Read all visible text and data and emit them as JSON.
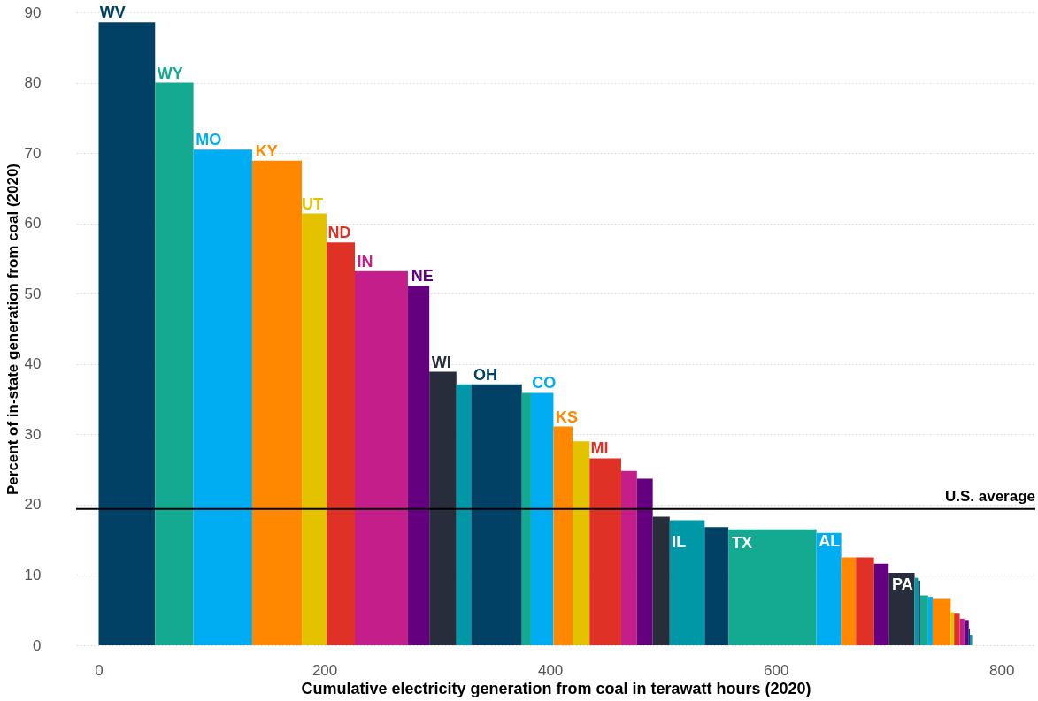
{
  "chart_data": {
    "type": "histogram",
    "xlabel": "Cumulative electricity generation from coal in terawatt hours (2020)",
    "ylabel": "Percent of in-state generation from coal (2020)",
    "bins": [
      0,
      50,
      84,
      136,
      180,
      202,
      227,
      274,
      293,
      317,
      330,
      375,
      383,
      403,
      420,
      435,
      463,
      477,
      491,
      506,
      537,
      558,
      636,
      658,
      671,
      687,
      700,
      723,
      726,
      728,
      735,
      739,
      755,
      758,
      763,
      767,
      771,
      772,
      774
    ],
    "values": [
      88.6,
      80,
      70.5,
      68.9,
      61.4,
      57.3,
      53.2,
      51.1,
      38.9,
      37.1,
      37.1,
      35.9,
      35.9,
      31.1,
      29.0,
      26.6,
      24.8,
      23.7,
      18.3,
      17.8,
      16.8,
      16.5,
      16.0,
      12.5,
      12.5,
      11.6,
      10.3,
      9.6,
      9.2,
      7.1,
      6.9,
      6.6,
      4.7,
      4.5,
      3.8,
      3.6,
      2.4,
      1.5
    ],
    "colors": [
      "#004165",
      "#14a991",
      "#00adf2",
      "#ff8800",
      "#e4c200",
      "#e03127",
      "#c41e8a",
      "#64007f",
      "#272d3a",
      "#0097a7",
      "#004165",
      "#14a991",
      "#00adf2",
      "#ff8800",
      "#e4c200",
      "#e03127",
      "#c41e8a",
      "#64007f",
      "#272d3a",
      "#0097a7",
      "#004165",
      "#14a991",
      "#00adf2",
      "#ff8800",
      "#e03127",
      "#64007f",
      "#272d3a",
      "#0097a7",
      "#004165",
      "#14a991",
      "#00adf2",
      "#ff8800",
      "#e4c200",
      "#e03127",
      "#c41e8a",
      "#64007f",
      "#004165",
      "#0097a7"
    ],
    "annotations": [
      {
        "text": "WV",
        "x": 1,
        "y": 88.6
      },
      {
        "text": "WY",
        "x": 52,
        "y": 80
      },
      {
        "text": "MO",
        "x": 86,
        "y": 70.5
      },
      {
        "text": "KY",
        "x": 139,
        "y": 68.9
      },
      {
        "text": "UT",
        "x": 180,
        "y": 61.4
      },
      {
        "text": "ND",
        "x": 203,
        "y": 57.3
      },
      {
        "text": "IN",
        "x": 229,
        "y": 53.2
      },
      {
        "text": "NE",
        "x": 277,
        "y": 51.1
      },
      {
        "text": "WI",
        "x": 295,
        "y": 38.9
      },
      {
        "text": "OH",
        "x": 332,
        "y": 37.1
      },
      {
        "text": "CO",
        "x": 384,
        "y": 35.9
      },
      {
        "text": "KS",
        "x": 405,
        "y": 31.1
      },
      {
        "text": "MI",
        "x": 436,
        "y": 26.6
      },
      {
        "text": "IL",
        "x": 508,
        "y": 14.6
      },
      {
        "text": "TX",
        "x": 561,
        "y": 14.5
      },
      {
        "text": "AL",
        "x": 638,
        "y": 14.7
      },
      {
        "text": "PA",
        "x": 703,
        "y": 8.6
      }
    ],
    "ref_lines": [
      {
        "axis": "y",
        "value": 19.4,
        "label": "U.S. average",
        "color": "#000000"
      }
    ],
    "xlim": [
      -20,
      830
    ],
    "ylim": [
      0,
      90
    ],
    "xticks": [
      0,
      200,
      400,
      600,
      800
    ],
    "yticks": [
      0,
      10,
      20,
      30,
      40,
      50,
      60,
      70,
      80,
      90
    ],
    "grid": "y"
  }
}
